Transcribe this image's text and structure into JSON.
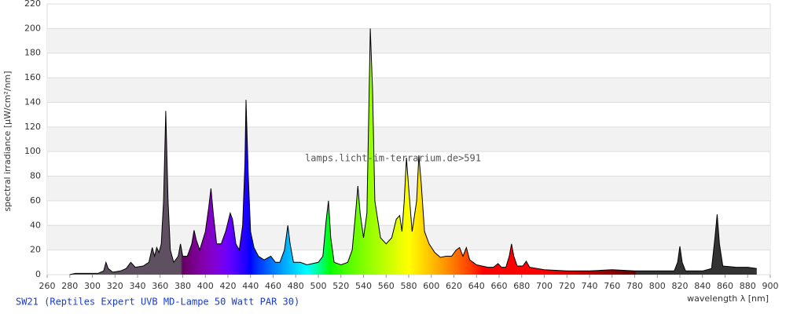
{
  "chart_data": {
    "type": "area",
    "subtitle": "SW21 (Reptiles Expert UVB MD-Lampe 50 Watt PAR 30)",
    "watermark": "lamps.licht-im-terrarium.de>591",
    "x_label": "wavelength λ [nm]",
    "y_label": "spectral irradiance [µW/cm²/nm]",
    "x": [
      280,
      285,
      290,
      300,
      305,
      310,
      312,
      314,
      318,
      325,
      330,
      334,
      338,
      345,
      350,
      353,
      355,
      357,
      359,
      361,
      363,
      365,
      367,
      369,
      372,
      376,
      378,
      380,
      384,
      388,
      390,
      392,
      395,
      400,
      403,
      405,
      407,
      410,
      414,
      418,
      422,
      424,
      427,
      430,
      433,
      435,
      436,
      438,
      440,
      443,
      447,
      452,
      458,
      462,
      466,
      470,
      473,
      475,
      478,
      484,
      490,
      495,
      500,
      504,
      507,
      509,
      511,
      514,
      520,
      526,
      530,
      533,
      535,
      537,
      540,
      543,
      545,
      546,
      548,
      550,
      555,
      560,
      565,
      569,
      572,
      574,
      576,
      578,
      580,
      583,
      587,
      589,
      591,
      594,
      598,
      603,
      608,
      613,
      618,
      622,
      625,
      628,
      631,
      634,
      640,
      650,
      655,
      659,
      662,
      666,
      669,
      671,
      673,
      676,
      681,
      684,
      687,
      700,
      720,
      740,
      760,
      780,
      800,
      815,
      818,
      820,
      822,
      825,
      840,
      848,
      851,
      853,
      855,
      858,
      870,
      880,
      888
    ],
    "values": [
      0,
      1,
      1,
      1,
      1,
      3,
      10,
      5,
      2,
      3,
      5,
      10,
      6,
      7,
      10,
      22,
      15,
      22,
      18,
      25,
      60,
      133,
      60,
      20,
      10,
      15,
      25,
      15,
      15,
      25,
      36,
      28,
      20,
      35,
      55,
      70,
      50,
      25,
      25,
      35,
      50,
      45,
      25,
      20,
      40,
      90,
      142,
      80,
      35,
      22,
      15,
      12,
      15,
      10,
      10,
      20,
      40,
      25,
      10,
      10,
      8,
      9,
      10,
      15,
      45,
      60,
      30,
      10,
      8,
      10,
      20,
      50,
      72,
      50,
      30,
      50,
      150,
      200,
      150,
      60,
      30,
      25,
      30,
      45,
      48,
      35,
      60,
      95,
      70,
      35,
      60,
      97,
      75,
      35,
      25,
      18,
      14,
      15,
      15,
      20,
      22,
      15,
      22,
      12,
      8,
      6,
      6,
      9,
      6,
      6,
      15,
      25,
      15,
      7,
      7,
      11,
      6,
      4,
      3,
      3,
      4,
      3,
      3,
      3,
      10,
      23,
      10,
      3,
      3,
      5,
      30,
      49,
      25,
      7,
      6,
      6,
      5
    ],
    "xlim": [
      260,
      900
    ],
    "ylim": [
      0,
      220
    ],
    "xticks": [
      260,
      280,
      300,
      320,
      340,
      360,
      380,
      400,
      420,
      440,
      460,
      480,
      500,
      520,
      540,
      560,
      580,
      600,
      620,
      640,
      660,
      680,
      700,
      720,
      740,
      760,
      780,
      800,
      820,
      840,
      860,
      880,
      900
    ],
    "yticks": [
      0,
      20,
      40,
      60,
      80,
      100,
      120,
      140,
      160,
      180,
      200,
      220
    ],
    "grid": true,
    "band_color": "#f2f2f2",
    "grid_color": "#dddddd",
    "line_color": "#000000",
    "color_below_visible": "#5e5060",
    "color_above_visible": "#333333"
  }
}
